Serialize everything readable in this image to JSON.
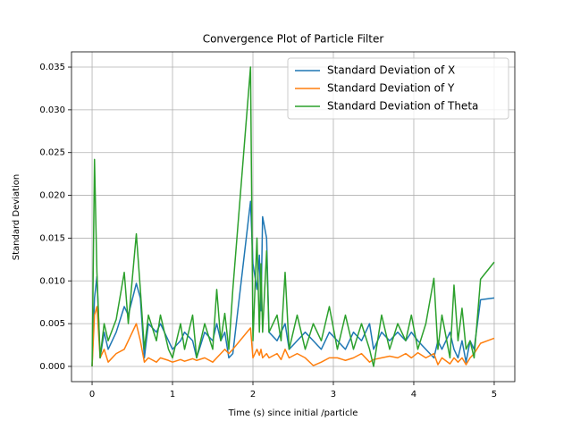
{
  "chart_data": {
    "type": "line",
    "title": "Convergence Plot of Particle Filter",
    "x_label": "Time (s) since initial /particle",
    "y_label": "Standard Deviation",
    "x": [
      0,
      0.03,
      0.06,
      0.1,
      0.15,
      0.2,
      0.3,
      0.4,
      0.45,
      0.55,
      0.6,
      0.65,
      0.7,
      0.8,
      0.85,
      0.95,
      1.0,
      1.1,
      1.15,
      1.25,
      1.3,
      1.4,
      1.5,
      1.55,
      1.6,
      1.65,
      1.7,
      1.75,
      1.97,
      2.0,
      2.05,
      2.08,
      2.1,
      2.12,
      2.17,
      2.2,
      2.3,
      2.35,
      2.4,
      2.45,
      2.55,
      2.65,
      2.75,
      2.85,
      2.95,
      3.05,
      3.15,
      3.25,
      3.35,
      3.45,
      3.5,
      3.6,
      3.7,
      3.8,
      3.9,
      3.97,
      4.05,
      4.15,
      4.25,
      4.3,
      4.35,
      4.45,
      4.5,
      4.55,
      4.6,
      4.65,
      4.7,
      4.75,
      4.83,
      5.0
    ],
    "series": [
      {
        "name": "Standard Deviation of X",
        "color": "#1f77b4",
        "values": [
          0,
          0.008,
          0.0105,
          0.001,
          0.004,
          0.002,
          0.004,
          0.007,
          0.006,
          0.0097,
          0.008,
          0.001,
          0.005,
          0.004,
          0.005,
          0.003,
          0.002,
          0.003,
          0.004,
          0.003,
          0.001,
          0.004,
          0.003,
          0.005,
          0.003,
          0.004,
          0.001,
          0.0015,
          0.0193,
          0.012,
          0.009,
          0.013,
          0.0065,
          0.0175,
          0.015,
          0.004,
          0.003,
          0.004,
          0.005,
          0.002,
          0.003,
          0.004,
          0.003,
          0.002,
          0.004,
          0.003,
          0.002,
          0.004,
          0.003,
          0.005,
          0.002,
          0.004,
          0.003,
          0.004,
          0.003,
          0.004,
          0.003,
          0.002,
          0.001,
          0.003,
          0.002,
          0.004,
          0.002,
          0.001,
          0.003,
          0.0005,
          0.003,
          0.002,
          0.0078,
          0.008
        ]
      },
      {
        "name": "Standard Deviation of Y",
        "color": "#ff7f0e",
        "values": [
          0,
          0.006,
          0.007,
          0.001,
          0.002,
          0.0005,
          0.0015,
          0.002,
          0.003,
          0.005,
          0.003,
          0.0005,
          0.001,
          0.0005,
          0.001,
          0.0007,
          0.0005,
          0.0008,
          0.0006,
          0.0009,
          0.0007,
          0.001,
          0.0005,
          0.001,
          0.0015,
          0.002,
          0.0015,
          0.002,
          0.0045,
          0.001,
          0.002,
          0.0013,
          0.002,
          0.001,
          0.0015,
          0.001,
          0.0015,
          0.0008,
          0.002,
          0.001,
          0.0015,
          0.001,
          0.0001,
          0.0005,
          0.001,
          0.001,
          0.0007,
          0.001,
          0.0015,
          0.0005,
          0.0008,
          0.001,
          0.0012,
          0.001,
          0.0015,
          0.001,
          0.0016,
          0.001,
          0.0015,
          0.0002,
          0.001,
          0.0003,
          0.001,
          0.0005,
          0.001,
          0.0002,
          0.001,
          0.0015,
          0.0027,
          0.0033
        ]
      },
      {
        "name": "Standard Deviation of Theta",
        "color": "#2ca02c",
        "values": [
          0,
          0.0242,
          0.011,
          0.001,
          0.005,
          0.003,
          0.0055,
          0.011,
          0.005,
          0.0155,
          0.009,
          0.002,
          0.006,
          0.003,
          0.006,
          0.002,
          0.001,
          0.005,
          0.002,
          0.006,
          0.001,
          0.005,
          0.002,
          0.009,
          0.003,
          0.0062,
          0.002,
          0.009,
          0.035,
          0.003,
          0.015,
          0.004,
          0.012,
          0.004,
          0.0135,
          0.004,
          0.006,
          0.003,
          0.011,
          0.002,
          0.006,
          0.002,
          0.005,
          0.003,
          0.007,
          0.002,
          0.006,
          0.002,
          0.005,
          0.002,
          0.0,
          0.006,
          0.002,
          0.005,
          0.003,
          0.006,
          0.002,
          0.005,
          0.0103,
          0.002,
          0.006,
          0.001,
          0.0095,
          0.003,
          0.0068,
          0.002,
          0.003,
          0.001,
          0.0102,
          0.0122
        ]
      }
    ],
    "xlim": [
      -0.256,
      5.256
    ],
    "ylim": [
      -0.00178,
      0.03678
    ],
    "xticks": [
      0,
      1,
      2,
      3,
      4,
      5
    ],
    "yticks": [
      {
        "value": 0,
        "label": "0.000"
      },
      {
        "value": 0.005,
        "label": "0.005"
      },
      {
        "value": 0.01,
        "label": "0.010"
      },
      {
        "value": 0.015,
        "label": "0.015"
      },
      {
        "value": 0.02,
        "label": "0.020"
      },
      {
        "value": 0.025,
        "label": "0.025"
      },
      {
        "value": 0.03,
        "label": "0.030"
      },
      {
        "value": 0.035,
        "label": "0.035"
      }
    ],
    "grid": true,
    "legend": "upper-right"
  }
}
